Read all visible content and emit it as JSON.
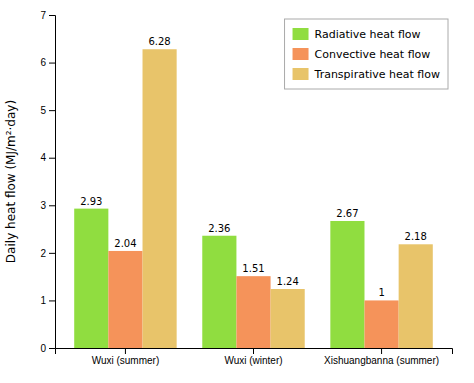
{
  "chart_data": {
    "type": "bar",
    "categories": [
      "Wuxi (summer)",
      "Wuxi (winter)",
      "Xishuangbanna (summer)"
    ],
    "series": [
      {
        "name": "Radiative heat flow",
        "color": "#90dd40",
        "values": [
          2.93,
          2.36,
          2.67
        ]
      },
      {
        "name": "Convective heat flow",
        "color": "#f5935a",
        "values": [
          2.04,
          1.51,
          1
        ]
      },
      {
        "name": "Transpirative heat flow",
        "color": "#e8c46a",
        "values": [
          6.28,
          1.24,
          2.18
        ]
      }
    ],
    "ylabel": "Daily heat flow (MJ/m²·day)",
    "ylim": [
      0,
      7
    ],
    "yticks": [
      0,
      1,
      2,
      3,
      4,
      5,
      6,
      7
    ],
    "grid": false,
    "legend": "upper right",
    "data_labels": true
  }
}
